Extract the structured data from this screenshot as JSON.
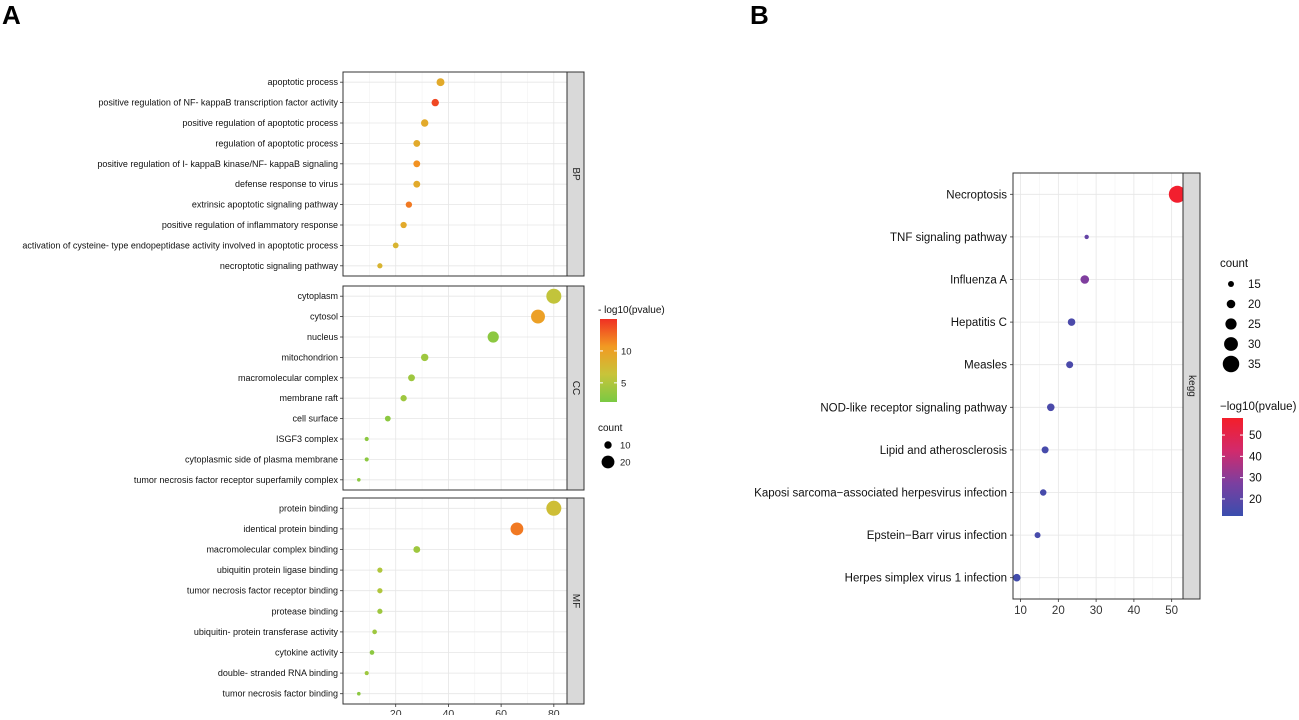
{
  "chart_data": [
    {
      "type": "scatter",
      "label": "A",
      "xlim": [
        0,
        85
      ],
      "xticks": [
        20,
        40,
        60,
        80
      ],
      "facets": [
        {
          "name": "BP",
          "terms": [
            "apoptotic process",
            "positive regulation of NF- kappaB transcription factor activity",
            "positive regulation of apoptotic process",
            "regulation of apoptotic process",
            "positive regulation of I- kappaB kinase/NF- kappaB signaling",
            "defense response to virus",
            "extrinsic apoptotic signaling pathway",
            "positive regulation of inflammatory response",
            "activation of cysteine- type endopeptidase activity involved in apoptotic process",
            "necroptotic signaling pathway"
          ],
          "x": [
            37,
            35,
            31,
            28,
            28,
            28,
            25,
            23,
            20,
            14
          ],
          "count": [
            11,
            10,
            10,
            9,
            9,
            9,
            8,
            8,
            7,
            6
          ],
          "pvalue_log10": [
            9,
            14,
            9,
            9,
            11,
            9,
            12,
            9,
            8,
            8
          ]
        },
        {
          "name": "CC",
          "terms": [
            "cytoplasm",
            "cytosol",
            "nucleus",
            "mitochondrion",
            "macromolecular complex",
            "membrane raft",
            "cell surface",
            "ISGF3 complex",
            "cytoplasmic side of plasma membrane",
            "tumor necrosis factor receptor superfamily complex"
          ],
          "x": [
            80,
            74,
            57,
            31,
            26,
            23,
            17,
            9,
            9,
            6
          ],
          "count": [
            24,
            22,
            17,
            10,
            9,
            8,
            7,
            4,
            4,
            3
          ],
          "pvalue_log10": [
            6,
            10,
            3,
            4,
            4,
            4,
            3,
            3,
            3,
            3
          ]
        },
        {
          "name": "MF",
          "terms": [
            "protein binding",
            "identical protein binding",
            "macromolecular complex binding",
            "ubiquitin protein ligase binding",
            "tumor necrosis factor receptor binding",
            "protease binding",
            "ubiquitin- protein transferase activity",
            "cytokine activity",
            "double- stranded RNA binding",
            "tumor necrosis factor binding"
          ],
          "x": [
            80,
            66,
            28,
            14,
            14,
            14,
            12,
            11,
            9,
            6
          ],
          "count": [
            24,
            20,
            9,
            6,
            6,
            6,
            5,
            5,
            4,
            3
          ],
          "pvalue_log10": [
            7,
            12,
            4,
            5,
            5,
            4,
            4,
            3,
            4,
            3
          ]
        }
      ],
      "legend_color": {
        "title": "- log10(pvalue)",
        "ticks": [
          5,
          10
        ],
        "range": [
          2,
          15
        ],
        "colors": [
          "#7ac943",
          "#c8c43a",
          "#f29a22",
          "#f03023"
        ]
      },
      "legend_size": {
        "title": "count",
        "values": [
          10,
          20
        ]
      }
    },
    {
      "type": "scatter",
      "label": "B",
      "xlim": [
        8,
        53
      ],
      "xticks": [
        10,
        20,
        30,
        40,
        50
      ],
      "facets": [
        {
          "name": "kegg",
          "terms": [
            "Necroptosis",
            "TNF signaling pathway",
            "Influenza A",
            "Hepatitis C",
            "Measles",
            "NOD-like receptor signaling pathway",
            "Lipid and atherosclerosis",
            "Kaposi sarcoma−associated herpesvirus infection",
            "Epstein−Barr virus infection",
            "Herpes simplex virus 1 infection"
          ],
          "x": [
            51.5,
            27.5,
            27,
            23.5,
            23,
            18,
            16.5,
            16,
            14.5,
            9
          ],
          "count": [
            36,
            12,
            20,
            18,
            17,
            18,
            17,
            16,
            15,
            18
          ],
          "pvalue_log10": [
            57,
            22,
            28,
            16,
            16,
            16,
            15,
            15,
            15,
            14
          ]
        }
      ],
      "legend_color": {
        "title": "−log10(pvalue)",
        "ticks": [
          20,
          30,
          40,
          50
        ],
        "range": [
          12,
          58
        ],
        "colors": [
          "#3a4eae",
          "#7b3fa0",
          "#d22a6c",
          "#f41e2a"
        ]
      },
      "legend_size": {
        "title": "count",
        "values": [
          15,
          20,
          25,
          30,
          35
        ]
      }
    }
  ]
}
